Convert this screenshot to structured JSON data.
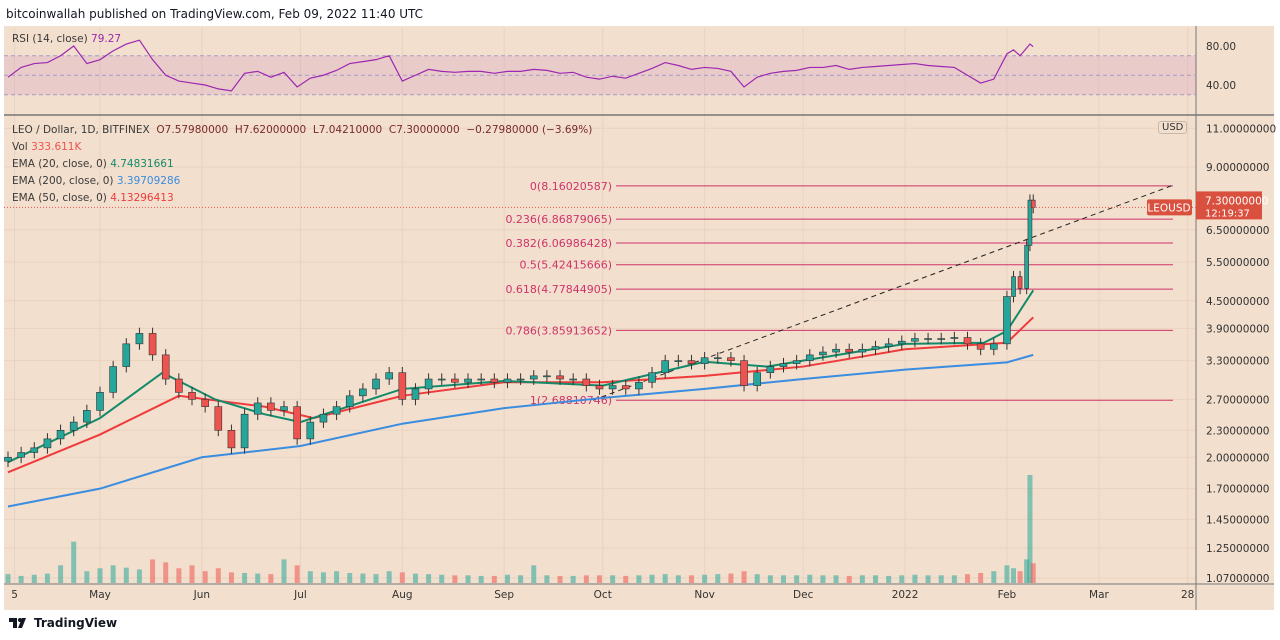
{
  "header": {
    "published": "bitcoinwallah published on TradingView.com, Feb 09, 2022 11:40 UTC"
  },
  "footer": {
    "brand": "TradingView",
    "icon": "tradingview-logo-icon"
  },
  "colors": {
    "bg": "#f2dfcd",
    "up": "#26a69a",
    "down": "#ef5350",
    "rsi": "#9c27b0",
    "ema20": "#138a6a",
    "ema200": "#3a8de0",
    "ema50": "#ef3b3b",
    "fib": "#d0336a"
  },
  "legend": {
    "rsi_label": "RSI (14, close)",
    "rsi_value": "79.27",
    "symbol": "LEO / Dollar, 1D, BITFINEX",
    "o": "O7.57980000",
    "h": "H7.62000000",
    "l": "L7.04210000",
    "c": "C7.30000000",
    "chg": "−0.27980000 (−3.69%)",
    "vol_label": "Vol",
    "vol_value": "333.611K",
    "ema20_label": "EMA (20, close, 0)",
    "ema20_value": "4.74831661",
    "ema200_label": "EMA (200, close, 0)",
    "ema200_value": "3.39709286",
    "ema50_label": "EMA (50, close, 0)",
    "ema50_value": "4.13296413"
  },
  "price_tag": {
    "symbol": "LEOUSD",
    "price": "7.30000000",
    "countdown": "12:19:37"
  },
  "currency": "USD",
  "chart_data": {
    "type": "candlestick",
    "yscale": "log",
    "ylim": [
      1.07,
      11.0
    ],
    "y_ticks": [
      "11.00000000",
      "9.00000000",
      "6.50000000",
      "5.50000000",
      "4.50000000",
      "3.90000000",
      "3.30000000",
      "2.70000000",
      "2.30000000",
      "2.00000000",
      "1.70000000",
      "1.45000000",
      "1.25000000",
      "1.07000000"
    ],
    "rsi_ticks": [
      "80.00",
      "40.00"
    ],
    "rsi_band": [
      30,
      70
    ],
    "x_ticks": [
      [
        "2021-04-05",
        "5"
      ],
      [
        "2021-05-01",
        "May"
      ],
      [
        "2021-06-01",
        "Jun"
      ],
      [
        "2021-07-01",
        "Jul"
      ],
      [
        "2021-08-01",
        "Aug"
      ],
      [
        "2021-09-01",
        "Sep"
      ],
      [
        "2021-10-01",
        "Oct"
      ],
      [
        "2021-11-01",
        "Nov"
      ],
      [
        "2021-12-01",
        "Dec"
      ],
      [
        "2022-01-01",
        "2022"
      ],
      [
        "2022-02-01",
        "Feb"
      ],
      [
        "2022-03-01",
        "Mar"
      ],
      [
        "2022-03-28",
        "28"
      ]
    ],
    "candles_columns": [
      "date",
      "close",
      "volume_k",
      "rsi"
    ],
    "candles": [
      [
        "2021-04-03",
        2.0,
        150,
        48
      ],
      [
        "2021-04-07",
        2.05,
        120,
        58
      ],
      [
        "2021-04-11",
        2.1,
        140,
        62
      ],
      [
        "2021-04-15",
        2.2,
        160,
        63
      ],
      [
        "2021-04-19",
        2.3,
        300,
        70
      ],
      [
        "2021-04-23",
        2.4,
        700,
        80
      ],
      [
        "2021-04-27",
        2.55,
        200,
        62
      ],
      [
        "2021-05-01",
        2.8,
        250,
        66
      ],
      [
        "2021-05-05",
        3.2,
        300,
        75
      ],
      [
        "2021-05-09",
        3.6,
        260,
        82
      ],
      [
        "2021-05-13",
        3.8,
        230,
        86
      ],
      [
        "2021-05-17",
        3.4,
        400,
        66
      ],
      [
        "2021-05-21",
        3.0,
        350,
        50
      ],
      [
        "2021-05-25",
        2.8,
        250,
        44
      ],
      [
        "2021-05-29",
        2.7,
        300,
        42
      ],
      [
        "2021-06-02",
        2.6,
        200,
        40
      ],
      [
        "2021-06-06",
        2.3,
        250,
        36
      ],
      [
        "2021-06-10",
        2.1,
        180,
        34
      ],
      [
        "2021-06-14",
        2.5,
        170,
        52
      ],
      [
        "2021-06-18",
        2.65,
        160,
        54
      ],
      [
        "2021-06-22",
        2.55,
        150,
        48
      ],
      [
        "2021-06-26",
        2.6,
        400,
        53
      ],
      [
        "2021-06-30",
        2.2,
        300,
        38
      ],
      [
        "2021-07-04",
        2.4,
        200,
        47
      ],
      [
        "2021-07-08",
        2.5,
        180,
        50
      ],
      [
        "2021-07-12",
        2.6,
        200,
        55
      ],
      [
        "2021-07-16",
        2.75,
        170,
        62
      ],
      [
        "2021-07-20",
        2.85,
        160,
        64
      ],
      [
        "2021-07-24",
        3.0,
        150,
        66
      ],
      [
        "2021-07-28",
        3.1,
        200,
        70
      ],
      [
        "2021-08-01",
        2.7,
        180,
        44
      ],
      [
        "2021-08-05",
        2.85,
        160,
        50
      ],
      [
        "2021-08-09",
        3.0,
        150,
        56
      ],
      [
        "2021-08-13",
        3.0,
        140,
        54
      ],
      [
        "2021-08-17",
        2.95,
        130,
        53
      ],
      [
        "2021-08-21",
        3.0,
        130,
        54
      ],
      [
        "2021-08-25",
        3.0,
        120,
        54
      ],
      [
        "2021-08-29",
        2.95,
        120,
        52
      ],
      [
        "2021-09-02",
        3.0,
        140,
        54
      ],
      [
        "2021-09-06",
        3.0,
        130,
        54
      ],
      [
        "2021-09-10",
        3.05,
        300,
        56
      ],
      [
        "2021-09-14",
        3.05,
        130,
        55
      ],
      [
        "2021-09-18",
        3.0,
        120,
        52
      ],
      [
        "2021-09-22",
        3.0,
        120,
        53
      ],
      [
        "2021-09-26",
        2.9,
        130,
        48
      ],
      [
        "2021-09-30",
        2.85,
        130,
        46
      ],
      [
        "2021-10-04",
        2.9,
        130,
        49
      ],
      [
        "2021-10-08",
        2.85,
        120,
        47
      ],
      [
        "2021-10-12",
        2.95,
        130,
        52
      ],
      [
        "2021-10-16",
        3.1,
        140,
        57
      ],
      [
        "2021-10-20",
        3.3,
        150,
        63
      ],
      [
        "2021-10-24",
        3.3,
        130,
        60
      ],
      [
        "2021-10-28",
        3.25,
        130,
        56
      ],
      [
        "2021-11-01",
        3.35,
        140,
        58
      ],
      [
        "2021-11-05",
        3.35,
        150,
        57
      ],
      [
        "2021-11-09",
        3.3,
        160,
        54
      ],
      [
        "2021-11-13",
        2.9,
        200,
        38
      ],
      [
        "2021-11-17",
        3.1,
        150,
        48
      ],
      [
        "2021-11-21",
        3.2,
        130,
        52
      ],
      [
        "2021-11-25",
        3.25,
        130,
        54
      ],
      [
        "2021-11-29",
        3.3,
        130,
        55
      ],
      [
        "2021-12-03",
        3.4,
        140,
        58
      ],
      [
        "2021-12-07",
        3.45,
        130,
        58
      ],
      [
        "2021-12-11",
        3.5,
        130,
        60
      ],
      [
        "2021-12-15",
        3.45,
        120,
        56
      ],
      [
        "2021-12-19",
        3.5,
        130,
        58
      ],
      [
        "2021-12-23",
        3.55,
        130,
        59
      ],
      [
        "2021-12-27",
        3.6,
        120,
        60
      ],
      [
        "2021-12-31",
        3.65,
        130,
        61
      ],
      [
        "2022-01-04",
        3.7,
        140,
        62
      ],
      [
        "2022-01-08",
        3.7,
        130,
        60
      ],
      [
        "2022-01-12",
        3.7,
        130,
        59
      ],
      [
        "2022-01-16",
        3.72,
        130,
        58
      ],
      [
        "2022-01-20",
        3.6,
        150,
        50
      ],
      [
        "2022-01-24",
        3.5,
        170,
        42
      ],
      [
        "2022-01-28",
        3.6,
        200,
        46
      ],
      [
        "2022-02-01",
        4.6,
        300,
        72
      ],
      [
        "2022-02-03",
        5.1,
        250,
        76
      ],
      [
        "2022-02-05",
        4.8,
        200,
        70
      ],
      [
        "2022-02-07",
        6.0,
        400,
        78
      ],
      [
        "2022-02-08",
        7.58,
        1830,
        82
      ],
      [
        "2022-02-09",
        7.3,
        334,
        79.27
      ]
    ],
    "ema20": [
      [
        "2021-04-03",
        1.95
      ],
      [
        "2021-05-01",
        2.45
      ],
      [
        "2021-05-20",
        3.1
      ],
      [
        "2021-06-05",
        2.7
      ],
      [
        "2021-06-20",
        2.5
      ],
      [
        "2021-07-01",
        2.4
      ],
      [
        "2021-08-01",
        2.85
      ],
      [
        "2021-09-01",
        2.97
      ],
      [
        "2021-10-01",
        2.9
      ],
      [
        "2021-11-01",
        3.28
      ],
      [
        "2021-11-20",
        3.2
      ],
      [
        "2021-12-01",
        3.3
      ],
      [
        "2022-01-01",
        3.6
      ],
      [
        "2022-01-25",
        3.62
      ],
      [
        "2022-02-01",
        3.85
      ],
      [
        "2022-02-09",
        4.75
      ]
    ],
    "ema50": [
      [
        "2021-04-03",
        1.85
      ],
      [
        "2021-05-01",
        2.25
      ],
      [
        "2021-05-25",
        2.75
      ],
      [
        "2021-06-20",
        2.6
      ],
      [
        "2021-07-05",
        2.45
      ],
      [
        "2021-08-01",
        2.75
      ],
      [
        "2021-09-01",
        2.95
      ],
      [
        "2021-10-01",
        2.95
      ],
      [
        "2021-11-01",
        3.05
      ],
      [
        "2021-12-01",
        3.2
      ],
      [
        "2022-01-01",
        3.5
      ],
      [
        "2022-02-01",
        3.62
      ],
      [
        "2022-02-09",
        4.13
      ]
    ],
    "ema200": [
      [
        "2021-04-03",
        1.55
      ],
      [
        "2021-05-01",
        1.7
      ],
      [
        "2021-06-01",
        2.0
      ],
      [
        "2021-07-01",
        2.12
      ],
      [
        "2021-08-01",
        2.38
      ],
      [
        "2021-09-01",
        2.58
      ],
      [
        "2021-10-01",
        2.72
      ],
      [
        "2021-11-01",
        2.85
      ],
      [
        "2021-12-01",
        3.0
      ],
      [
        "2022-01-01",
        3.15
      ],
      [
        "2022-02-01",
        3.27
      ],
      [
        "2022-02-09",
        3.4
      ]
    ],
    "fib_levels": [
      {
        "label": "0(8.16020587)",
        "price": 8.16020587
      },
      {
        "label": "0.236(6.86879065)",
        "price": 6.86879065
      },
      {
        "label": "0.382(6.06986428)",
        "price": 6.06986428
      },
      {
        "label": "0.5(5.42415666)",
        "price": 5.42415666
      },
      {
        "label": "0.618(4.77844905)",
        "price": 4.77844905
      },
      {
        "label": "0.786(3.85913652)",
        "price": 3.85913652
      },
      {
        "label": "1(2.68810746)",
        "price": 2.68810746
      }
    ],
    "trendline": [
      [
        "2021-09-28",
        2.68810746
      ],
      [
        "2022-03-23",
        8.16020587
      ]
    ]
  }
}
